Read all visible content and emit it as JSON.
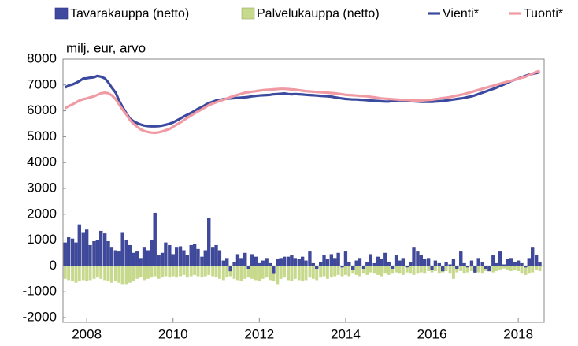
{
  "chart_data": {
    "type": "combo",
    "y_label": "milj. eur, arvo",
    "xlim": [
      2007.45,
      2018.6
    ],
    "xticks": [
      2008,
      2010,
      2012,
      2014,
      2016,
      2018
    ],
    "ylim": [
      -2000,
      8000
    ],
    "yticks": [
      -2000,
      -1000,
      0,
      1000,
      2000,
      3000,
      4000,
      5000,
      6000,
      7000,
      8000
    ],
    "grid": false,
    "legend": "top",
    "x": [
      2007.5,
      2007.58,
      2007.67,
      2007.75,
      2007.83,
      2007.92,
      2008,
      2008.08,
      2008.17,
      2008.25,
      2008.33,
      2008.42,
      2008.5,
      2008.58,
      2008.67,
      2008.75,
      2008.83,
      2008.92,
      2009,
      2009.08,
      2009.17,
      2009.25,
      2009.33,
      2009.42,
      2009.5,
      2009.58,
      2009.67,
      2009.75,
      2009.83,
      2009.92,
      2010,
      2010.08,
      2010.17,
      2010.25,
      2010.33,
      2010.42,
      2010.5,
      2010.58,
      2010.67,
      2010.75,
      2010.83,
      2010.92,
      2011,
      2011.08,
      2011.17,
      2011.25,
      2011.33,
      2011.42,
      2011.5,
      2011.58,
      2011.67,
      2011.75,
      2011.83,
      2011.92,
      2012,
      2012.08,
      2012.17,
      2012.25,
      2012.33,
      2012.42,
      2012.5,
      2012.58,
      2012.67,
      2012.75,
      2012.83,
      2012.92,
      2013,
      2013.08,
      2013.17,
      2013.25,
      2013.33,
      2013.42,
      2013.5,
      2013.58,
      2013.67,
      2013.75,
      2013.83,
      2013.92,
      2014,
      2014.08,
      2014.17,
      2014.25,
      2014.33,
      2014.42,
      2014.5,
      2014.58,
      2014.67,
      2014.75,
      2014.83,
      2014.92,
      2015,
      2015.08,
      2015.17,
      2015.25,
      2015.33,
      2015.42,
      2015.5,
      2015.58,
      2015.67,
      2015.75,
      2015.83,
      2015.92,
      2016,
      2016.08,
      2016.17,
      2016.25,
      2016.33,
      2016.42,
      2016.5,
      2016.58,
      2016.67,
      2016.75,
      2016.83,
      2016.92,
      2017,
      2017.08,
      2017.17,
      2017.25,
      2017.33,
      2017.42,
      2017.5,
      2017.58,
      2017.67,
      2017.75,
      2017.83,
      2017.92,
      2018,
      2018.08,
      2018.17,
      2018.25,
      2018.33,
      2018.42,
      2018.5
    ],
    "series": [
      {
        "name": "Palvelukauppa (netto)",
        "type": "bar",
        "color": "#c6d98c",
        "values": [
          -500,
          -550,
          -600,
          -650,
          -600,
          -550,
          -600,
          -550,
          -500,
          -450,
          -500,
          -550,
          -600,
          -650,
          -600,
          -650,
          -700,
          -700,
          -650,
          -600,
          -500,
          -450,
          -550,
          -500,
          -450,
          -400,
          -500,
          -450,
          -400,
          -450,
          -400,
          -450,
          -400,
          -350,
          -450,
          -400,
          -350,
          -400,
          -450,
          -400,
          -350,
          -400,
          -450,
          -500,
          -550,
          -450,
          -400,
          -500,
          -550,
          -600,
          -500,
          -450,
          -500,
          -550,
          -600,
          -500,
          -450,
          -550,
          -600,
          -700,
          -500,
          -450,
          -550,
          -600,
          -500,
          -550,
          -600,
          -550,
          -450,
          -500,
          -550,
          -450,
          -400,
          -500,
          -450,
          -400,
          -350,
          -400,
          -350,
          -400,
          -300,
          -350,
          -400,
          -300,
          -350,
          -250,
          -300,
          -350,
          -400,
          -300,
          -350,
          -300,
          -250,
          -300,
          -350,
          -250,
          -300,
          -350,
          -300,
          -250,
          -300,
          -200,
          -250,
          -200,
          -300,
          -250,
          -200,
          -300,
          -500,
          -250,
          -200,
          -300,
          -250,
          -200,
          -200,
          -250,
          -300,
          -200,
          -150,
          -250,
          -200,
          -150,
          -100,
          -150,
          -200,
          -150,
          -200,
          -300,
          -350,
          -300,
          -250,
          -150,
          -200
        ]
      },
      {
        "name": "Tavarakauppa (netto)",
        "type": "bar",
        "color": "#3f4a9e",
        "values": [
          900,
          1100,
          1050,
          900,
          1600,
          1300,
          1400,
          800,
          950,
          1000,
          1350,
          1250,
          950,
          700,
          600,
          550,
          1300,
          1000,
          800,
          500,
          550,
          300,
          700,
          600,
          1000,
          2050,
          400,
          500,
          900,
          800,
          450,
          700,
          750,
          600,
          400,
          800,
          850,
          650,
          350,
          600,
          1850,
          700,
          800,
          600,
          200,
          300,
          -200,
          150,
          450,
          300,
          500,
          -100,
          450,
          350,
          100,
          200,
          300,
          100,
          -300,
          250,
          300,
          350,
          350,
          400,
          300,
          250,
          350,
          200,
          550,
          100,
          -100,
          150,
          400,
          250,
          450,
          300,
          500,
          -50,
          550,
          150,
          -150,
          200,
          300,
          -100,
          150,
          450,
          100,
          350,
          250,
          500,
          150,
          -100,
          400,
          200,
          300,
          -50,
          150,
          700,
          550,
          400,
          250,
          300,
          -150,
          200,
          100,
          -200,
          150,
          50,
          250,
          -100,
          550,
          100,
          -50,
          200,
          -250,
          300,
          150,
          -100,
          -200,
          400,
          100,
          550,
          50,
          250,
          300,
          150,
          200,
          100,
          -50,
          300,
          700,
          400,
          150
        ]
      },
      {
        "name": "Vienti*",
        "type": "line",
        "color": "#3b4a9e",
        "values": [
          6900,
          6980,
          7020,
          7080,
          7150,
          7250,
          7260,
          7280,
          7300,
          7350,
          7320,
          7250,
          7100,
          6900,
          6700,
          6400,
          6150,
          5900,
          5700,
          5600,
          5520,
          5470,
          5430,
          5410,
          5400,
          5400,
          5410,
          5430,
          5460,
          5500,
          5550,
          5620,
          5700,
          5780,
          5850,
          5920,
          6000,
          6080,
          6150,
          6230,
          6300,
          6350,
          6400,
          6420,
          6450,
          6470,
          6480,
          6490,
          6500,
          6510,
          6520,
          6540,
          6560,
          6580,
          6590,
          6600,
          6610,
          6620,
          6640,
          6650,
          6660,
          6670,
          6650,
          6640,
          6650,
          6640,
          6630,
          6620,
          6610,
          6600,
          6590,
          6580,
          6570,
          6560,
          6550,
          6520,
          6500,
          6480,
          6460,
          6450,
          6440,
          6440,
          6430,
          6420,
          6410,
          6400,
          6390,
          6380,
          6370,
          6360,
          6360,
          6380,
          6400,
          6410,
          6400,
          6390,
          6380,
          6370,
          6360,
          6350,
          6350,
          6350,
          6350,
          6360,
          6370,
          6380,
          6400,
          6420,
          6440,
          6460,
          6480,
          6500,
          6530,
          6560,
          6600,
          6650,
          6700,
          6750,
          6800,
          6850,
          6900,
          6960,
          7020,
          7080,
          7150,
          7200,
          7250,
          7300,
          7350,
          7400,
          7430,
          7460,
          7500
        ]
      },
      {
        "name": "Tuonti*",
        "type": "line",
        "color": "#f09aa4",
        "values": [
          6100,
          6180,
          6250,
          6320,
          6400,
          6450,
          6480,
          6520,
          6560,
          6620,
          6680,
          6700,
          6680,
          6600,
          6450,
          6250,
          6050,
          5850,
          5650,
          5500,
          5380,
          5280,
          5220,
          5180,
          5160,
          5150,
          5170,
          5200,
          5250,
          5300,
          5380,
          5460,
          5550,
          5640,
          5730,
          5820,
          5900,
          5980,
          6060,
          6140,
          6220,
          6280,
          6330,
          6380,
          6430,
          6480,
          6530,
          6580,
          6620,
          6660,
          6700,
          6720,
          6740,
          6760,
          6780,
          6800,
          6810,
          6820,
          6830,
          6840,
          6850,
          6850,
          6840,
          6830,
          6820,
          6800,
          6780,
          6760,
          6750,
          6740,
          6730,
          6720,
          6710,
          6700,
          6690,
          6680,
          6660,
          6640,
          6620,
          6610,
          6600,
          6590,
          6580,
          6570,
          6560,
          6540,
          6520,
          6500,
          6480,
          6470,
          6460,
          6450,
          6440,
          6430,
          6420,
          6420,
          6410,
          6400,
          6400,
          6400,
          6410,
          6420,
          6430,
          6450,
          6470,
          6490,
          6510,
          6530,
          6560,
          6590,
          6620,
          6650,
          6690,
          6730,
          6770,
          6810,
          6850,
          6890,
          6930,
          6970,
          7010,
          7050,
          7090,
          7130,
          7160,
          7200,
          7240,
          7280,
          7320,
          7380,
          7440,
          7500,
          7550
        ]
      }
    ]
  }
}
